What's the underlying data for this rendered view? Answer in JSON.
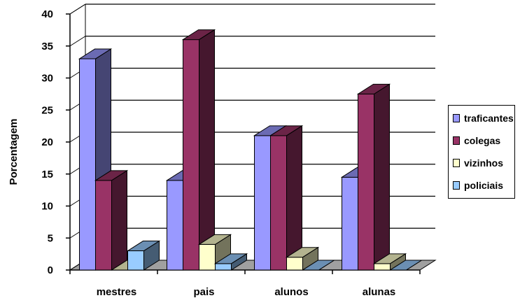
{
  "chart_data": {
    "type": "bar",
    "title": "",
    "xlabel": "",
    "ylabel": "Porcentagem",
    "ylim": [
      0,
      40
    ],
    "yticks": [
      "0",
      "5",
      "10",
      "15",
      "20",
      "25",
      "30",
      "35",
      "40"
    ],
    "categories": [
      "mestres",
      "pais",
      "alunos",
      "alunas"
    ],
    "series": [
      {
        "name": "traficantes",
        "color": "#9999ff",
        "values": [
          33,
          14,
          21,
          14.5
        ]
      },
      {
        "name": "colegas",
        "color": "#993366",
        "values": [
          14,
          36,
          21,
          27.5
        ]
      },
      {
        "name": "vizinhos",
        "color": "#ffffcc",
        "values": [
          0,
          4,
          2,
          1
        ]
      },
      {
        "name": "policiais",
        "color": "#99ccff",
        "values": [
          3,
          1,
          0,
          0
        ]
      }
    ],
    "grid": true,
    "legend_position": "right"
  }
}
